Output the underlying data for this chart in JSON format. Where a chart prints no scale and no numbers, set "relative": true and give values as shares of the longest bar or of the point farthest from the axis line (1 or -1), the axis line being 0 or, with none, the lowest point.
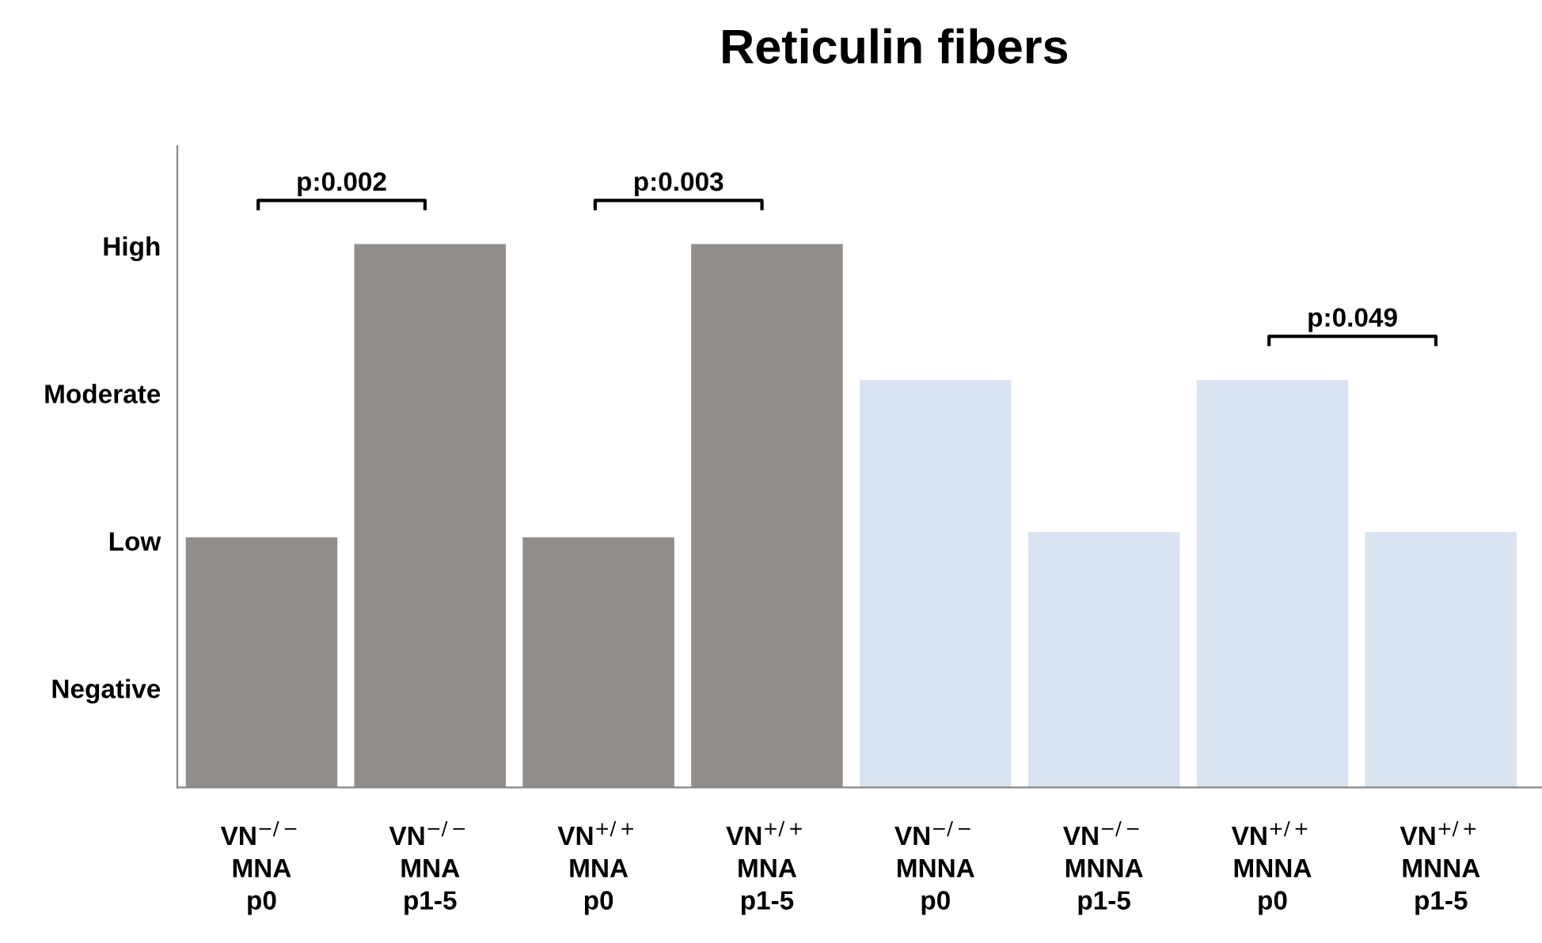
{
  "chart_data": {
    "type": "bar",
    "title": "Reticulin fibers",
    "categories": [
      "VN$^{−/−}$\nMNA\np0",
      "VN$^{−/−}$\nMNA\np1-5",
      "VN$^{+/+}$\nMNA\np0",
      "VN$^{+/+}$\nMNA\np1-5",
      "VN$^{−/−}$\nMNNA\np0",
      "VN$^{−/−}$\nMNNA\np1-5",
      "VN$^{+/+}$\nMNNA\np0",
      "VN$^{+/+}$\nMNNA\np1-5"
    ],
    "values": [
      0.46,
      1,
      0.46,
      1,
      0.75,
      0.47,
      0.75,
      0.47
    ],
    "colors": [
      "#918d8b",
      "#918d8b",
      "#918d8b",
      "#918d8b",
      "#dae3f0",
      "#dae3f0",
      "#dae3f0",
      "#dae3f0"
    ],
    "relative": true,
    "grid": false,
    "annotations": [
      "Negative",
      "Low",
      "Moderate",
      "High",
      "p:0.002",
      "p:0.003",
      "p:0.049"
    ]
  }
}
